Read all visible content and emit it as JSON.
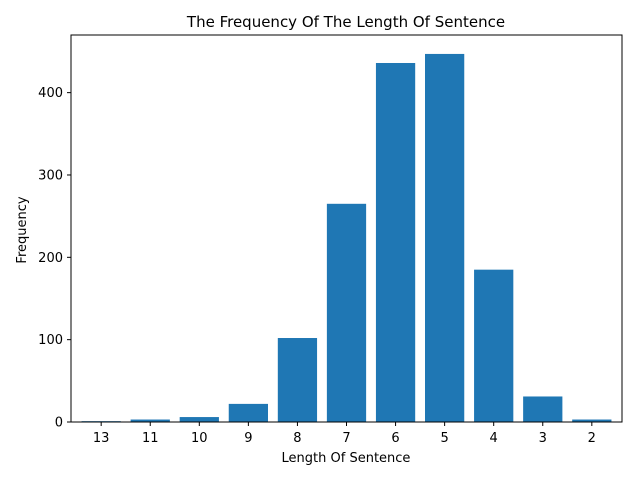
{
  "chart_data": {
    "type": "bar",
    "title": "The Frequency Of The Length Of Sentence",
    "xlabel": "Length Of Sentence",
    "ylabel": "Frequency",
    "categories": [
      "13",
      "11",
      "10",
      "9",
      "8",
      "7",
      "6",
      "5",
      "4",
      "3",
      "2"
    ],
    "values": [
      1,
      3,
      6,
      22,
      102,
      265,
      436,
      447,
      185,
      31,
      3
    ],
    "ylim": [
      0,
      470
    ],
    "yticks": [
      0,
      100,
      200,
      300,
      400
    ],
    "grid": false,
    "bar_color": "#1f77b4"
  }
}
